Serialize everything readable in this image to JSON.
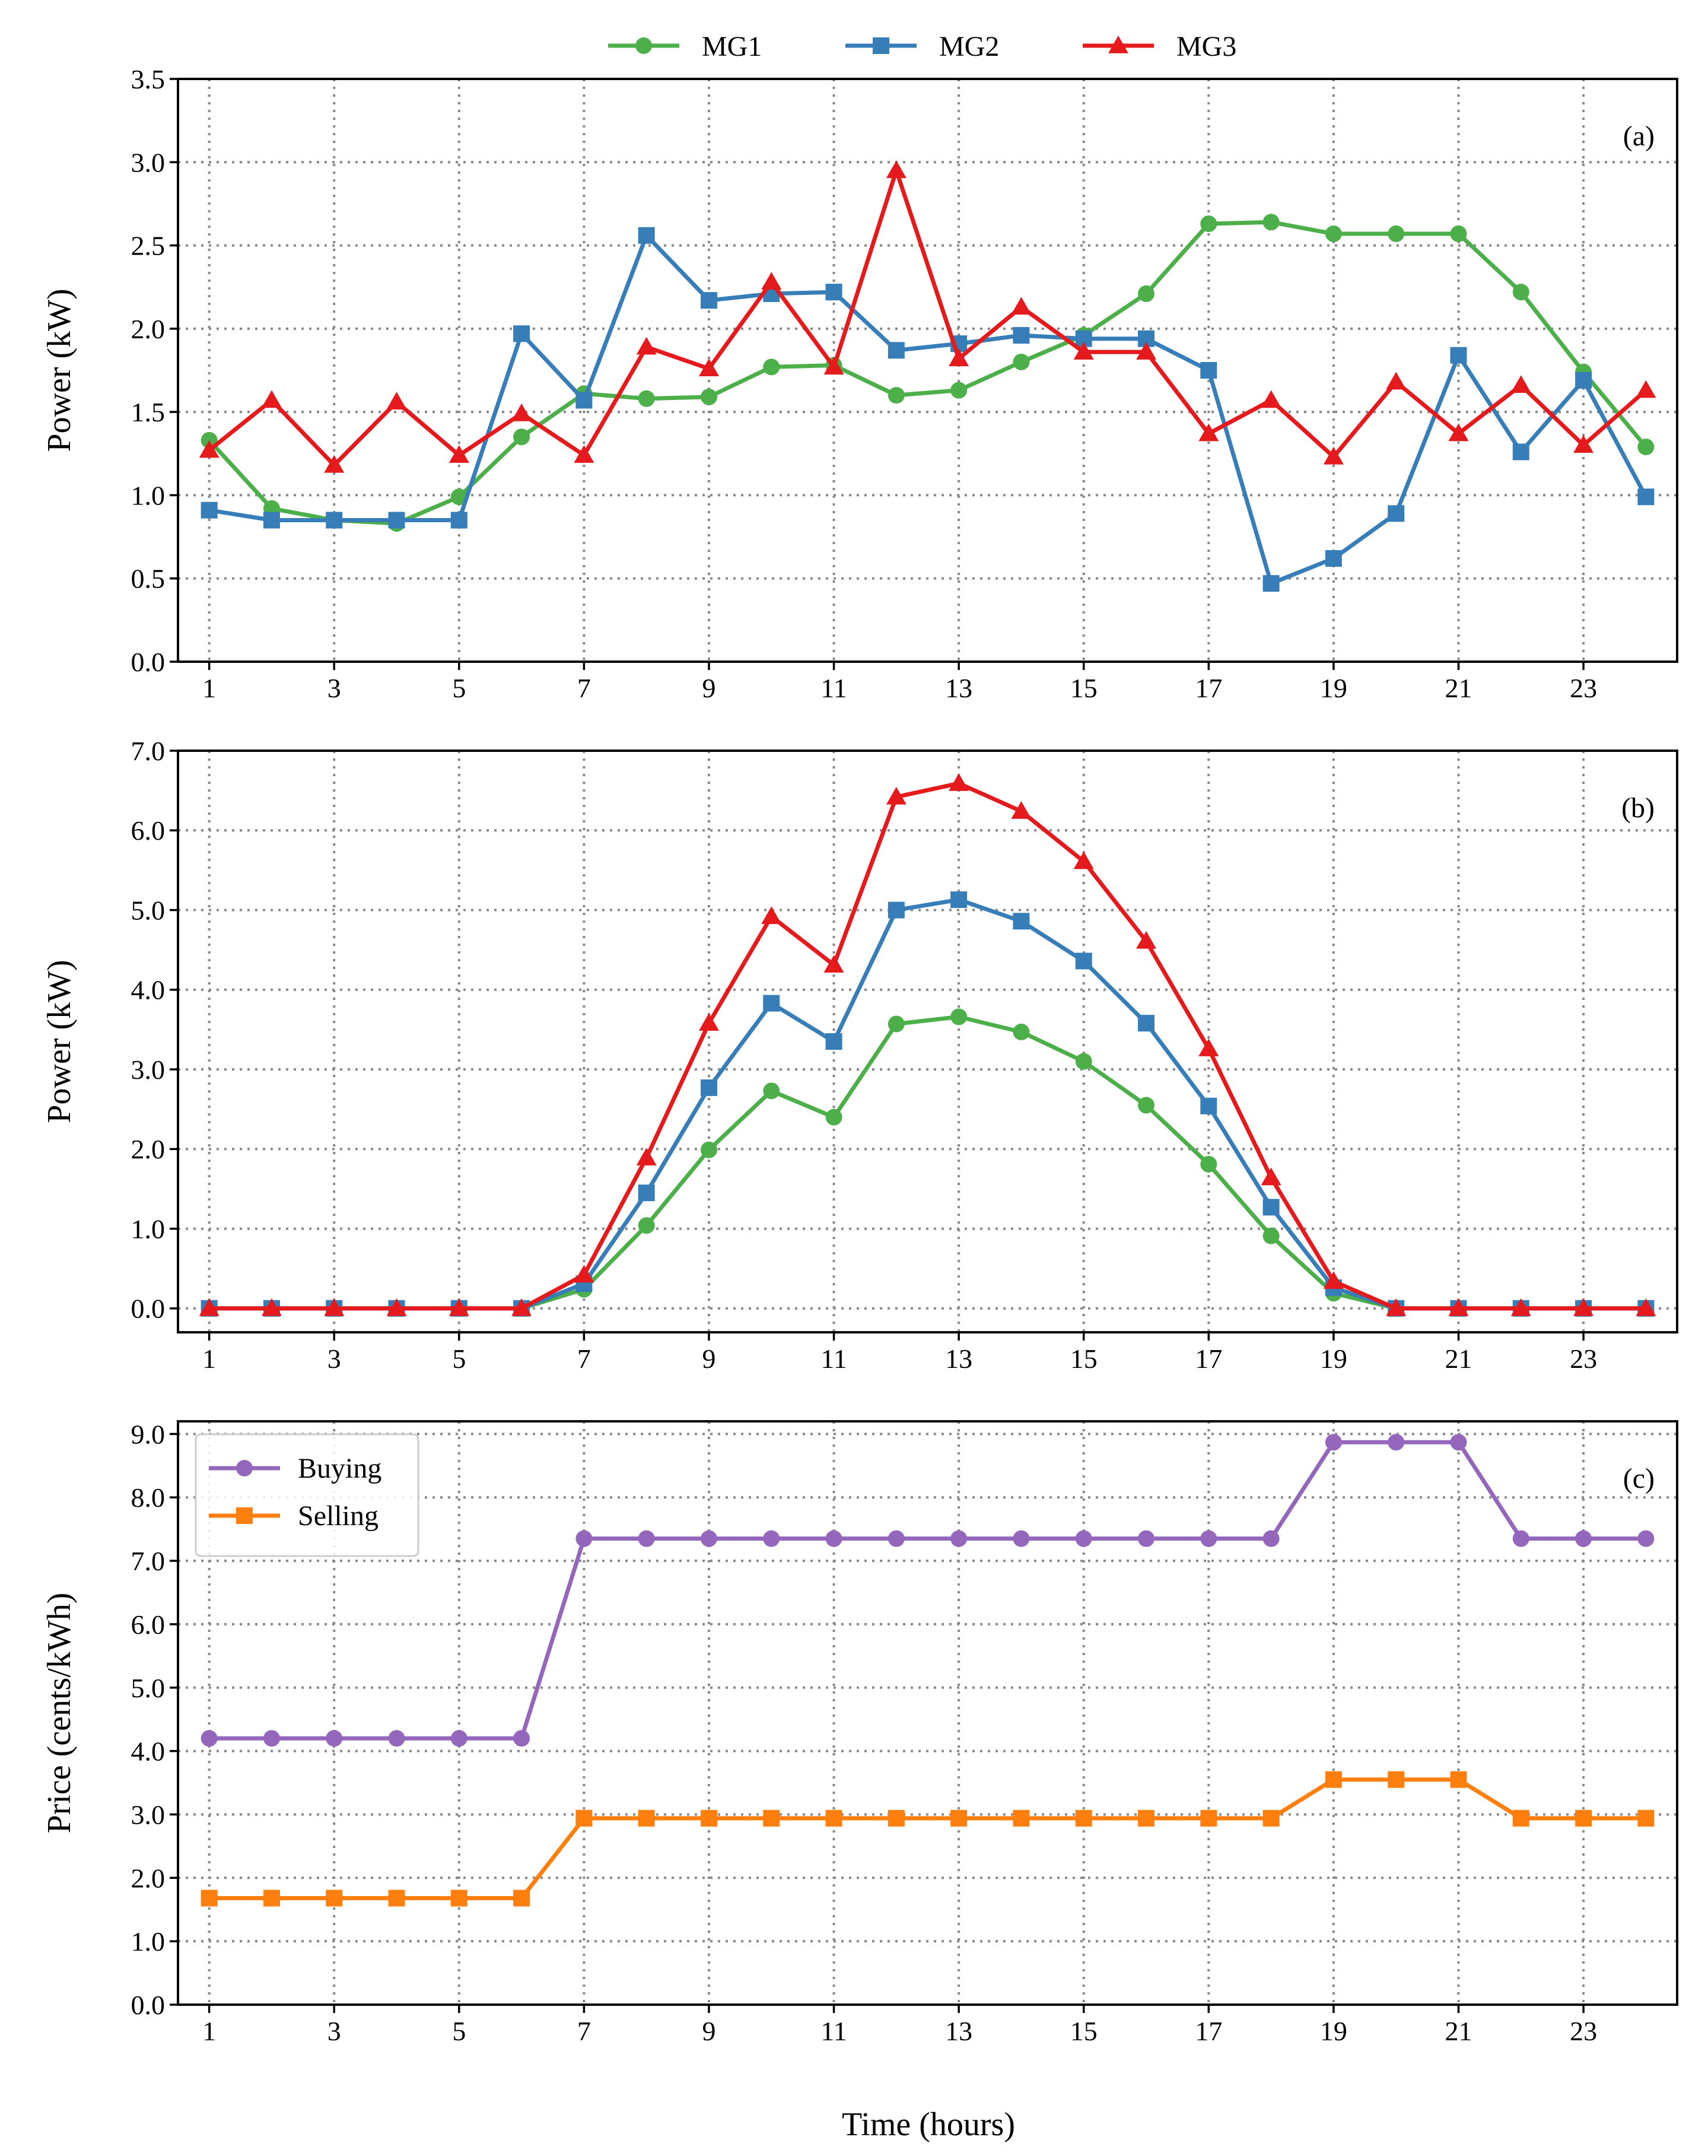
{
  "figure": {
    "top_legend": [
      "MG1",
      "MG2",
      "MG3"
    ],
    "xlabel": "Time (hours)"
  },
  "chart_data": [
    {
      "type": "line",
      "panel_tag": "(a)",
      "ylabel": "Power (kW)",
      "x": [
        1,
        2,
        3,
        4,
        5,
        6,
        7,
        8,
        9,
        10,
        11,
        12,
        13,
        14,
        15,
        16,
        17,
        18,
        19,
        20,
        21,
        22,
        23,
        24
      ],
      "xticks": [
        1,
        3,
        5,
        7,
        9,
        11,
        13,
        15,
        17,
        19,
        21,
        23
      ],
      "xlim": [
        0.5,
        24.5
      ],
      "ylim": [
        0,
        3.5
      ],
      "yticks": [
        "0.0",
        "0.5",
        "1.0",
        "1.5",
        "2.0",
        "2.5",
        "3.0",
        "3.5"
      ],
      "grid": true,
      "series": [
        {
          "name": "MG1",
          "color": "#4daf4a",
          "marker": "circle",
          "values": [
            1.33,
            0.92,
            0.85,
            0.83,
            0.99,
            1.35,
            1.61,
            1.58,
            1.59,
            1.77,
            1.78,
            1.6,
            1.63,
            1.8,
            1.96,
            2.21,
            2.63,
            2.64,
            2.57,
            2.57,
            2.57,
            2.22,
            1.74,
            1.29
          ]
        },
        {
          "name": "MG2",
          "color": "#377eb8",
          "marker": "square",
          "values": [
            0.91,
            0.85,
            0.85,
            0.85,
            0.85,
            1.97,
            1.57,
            2.56,
            2.17,
            2.21,
            2.22,
            1.87,
            1.91,
            1.96,
            1.94,
            1.94,
            1.75,
            0.47,
            0.62,
            0.89,
            1.84,
            1.26,
            1.69,
            0.99
          ]
        },
        {
          "name": "MG3",
          "color": "#e41a1c",
          "marker": "triangle",
          "values": [
            1.27,
            1.57,
            1.18,
            1.56,
            1.24,
            1.49,
            1.24,
            1.89,
            1.76,
            2.28,
            1.77,
            2.95,
            1.82,
            2.13,
            1.86,
            1.86,
            1.37,
            1.57,
            1.23,
            1.68,
            1.37,
            1.66,
            1.3,
            1.63
          ]
        }
      ]
    },
    {
      "type": "line",
      "panel_tag": "(b)",
      "ylabel": "Power (kW)",
      "x": [
        1,
        2,
        3,
        4,
        5,
        6,
        7,
        8,
        9,
        10,
        11,
        12,
        13,
        14,
        15,
        16,
        17,
        18,
        19,
        20,
        21,
        22,
        23,
        24
      ],
      "xticks": [
        1,
        3,
        5,
        7,
        9,
        11,
        13,
        15,
        17,
        19,
        21,
        23
      ],
      "xlim": [
        0.5,
        24.5
      ],
      "ylim": [
        -0.3,
        7.0
      ],
      "yticks": [
        "0.0",
        "1.0",
        "2.0",
        "3.0",
        "4.0",
        "5.0",
        "6.0",
        "7.0"
      ],
      "grid": true,
      "series": [
        {
          "name": "MG1",
          "color": "#4daf4a",
          "marker": "circle",
          "values": [
            0,
            0,
            0,
            0,
            0,
            0,
            0.24,
            1.04,
            1.99,
            2.73,
            2.4,
            3.57,
            3.66,
            3.47,
            3.1,
            2.55,
            1.81,
            0.91,
            0.19,
            0,
            0,
            0,
            0,
            0
          ]
        },
        {
          "name": "MG2",
          "color": "#377eb8",
          "marker": "square",
          "values": [
            0,
            0,
            0,
            0,
            0,
            0,
            0.31,
            1.45,
            2.77,
            3.83,
            3.35,
            5.0,
            5.13,
            4.86,
            4.36,
            3.58,
            2.54,
            1.27,
            0.26,
            0,
            0,
            0,
            0,
            0
          ]
        },
        {
          "name": "MG3",
          "color": "#e41a1c",
          "marker": "triangle",
          "values": [
            0,
            0,
            0,
            0,
            0,
            0,
            0.42,
            1.89,
            3.58,
            4.92,
            4.31,
            6.42,
            6.59,
            6.24,
            5.61,
            4.61,
            3.26,
            1.64,
            0.34,
            0,
            0,
            0,
            0,
            0
          ]
        }
      ]
    },
    {
      "type": "line",
      "panel_tag": "(c)",
      "ylabel": "Price (cents/kWh)",
      "x": [
        1,
        2,
        3,
        4,
        5,
        6,
        7,
        8,
        9,
        10,
        11,
        12,
        13,
        14,
        15,
        16,
        17,
        18,
        19,
        20,
        21,
        22,
        23,
        24
      ],
      "xticks": [
        1,
        3,
        5,
        7,
        9,
        11,
        13,
        15,
        17,
        19,
        21,
        23
      ],
      "xlim": [
        0.5,
        24.5
      ],
      "ylim": [
        0,
        9.2
      ],
      "yticks": [
        "0.0",
        "1.0",
        "2.0",
        "3.0",
        "4.0",
        "5.0",
        "6.0",
        "7.0",
        "8.0",
        "9.0"
      ],
      "grid": true,
      "legend": "top-left",
      "series": [
        {
          "name": "Buying",
          "color": "#9467bd",
          "marker": "circle",
          "values": [
            4.2,
            4.2,
            4.2,
            4.2,
            4.2,
            4.2,
            7.35,
            7.35,
            7.35,
            7.35,
            7.35,
            7.35,
            7.35,
            7.35,
            7.35,
            7.35,
            7.35,
            7.35,
            8.87,
            8.87,
            8.87,
            7.35,
            7.35,
            7.35
          ]
        },
        {
          "name": "Selling",
          "color": "#ff7f0e",
          "marker": "square",
          "values": [
            1.68,
            1.68,
            1.68,
            1.68,
            1.68,
            1.68,
            2.94,
            2.94,
            2.94,
            2.94,
            2.94,
            2.94,
            2.94,
            2.94,
            2.94,
            2.94,
            2.94,
            2.94,
            3.55,
            3.55,
            3.55,
            2.94,
            2.94,
            2.94
          ]
        }
      ]
    }
  ]
}
